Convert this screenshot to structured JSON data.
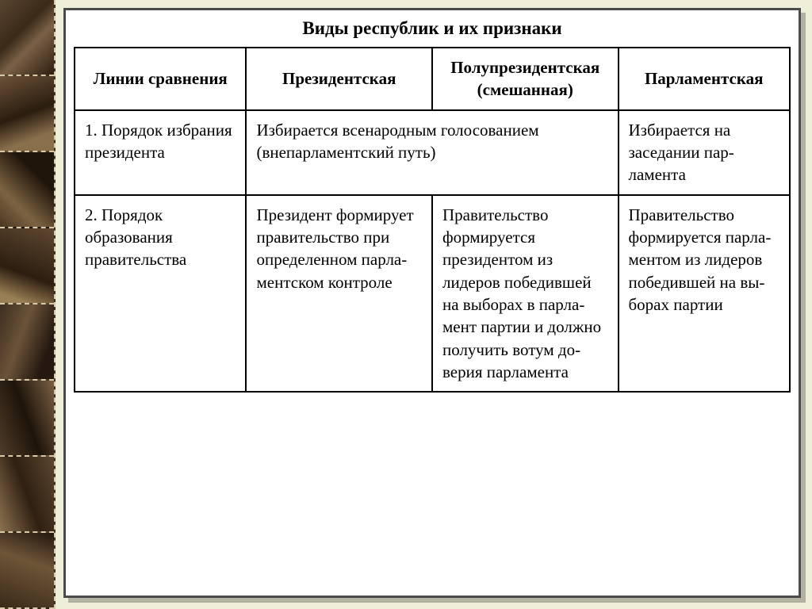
{
  "slide": {
    "title": "Виды республик и их признаки",
    "background_color": "#eeedd8",
    "frame_border_color": "#4a4a4a",
    "table_border_color": "#000000",
    "text_color": "#000000",
    "title_fontsize": 23,
    "cell_fontsize": 21
  },
  "table": {
    "columns": [
      "Линии сравнения",
      "Президентская",
      "Полупрези­дентская (смешанная)",
      "Парламентская"
    ],
    "column_widths_pct": [
      24,
      26,
      26,
      24
    ],
    "rows": [
      {
        "label": "1. Порядок избрания пре­зидента",
        "cells": [
          {
            "text": "Избирается всенародным голо­сованием (внепарламентский путь)",
            "colspan": 2
          },
          {
            "text": "Избирается на заседании пар­ламента",
            "colspan": 1
          }
        ]
      },
      {
        "label": "2. Порядок образования правительства",
        "cells": [
          {
            "text": "Президент формирует правительст­во при опреде­ленном парла­ментском контроле",
            "colspan": 1
          },
          {
            "text": "Правительство формируется президентом из лидеров побе­дившей на вы­борах в парла­мент партии и должно полу­чить вотум до­верия парла­мента",
            "colspan": 1
          },
          {
            "text": "Правительст­во формиру­ется парла­ментом из лидеров побе­дившей на вы­борах партии",
            "colspan": 1
          }
        ]
      }
    ]
  },
  "sidebar": {
    "pattern": "autumn-leaves",
    "cells": 8,
    "border_style": "dashed",
    "border_color": "#d8c9a8",
    "base_colors": [
      "#3d2e1f",
      "#5a4530",
      "#7a6045",
      "#2d1f10"
    ]
  }
}
